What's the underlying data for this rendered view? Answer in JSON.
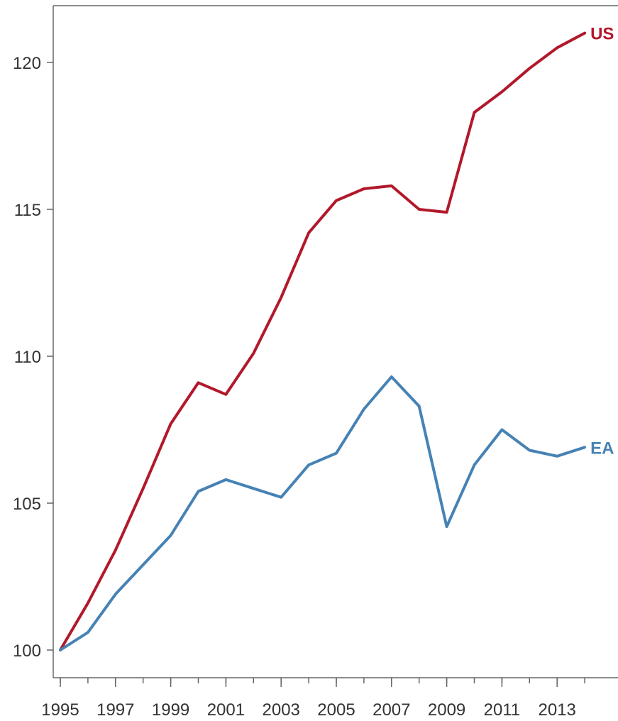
{
  "chart_data": {
    "type": "line",
    "title": "",
    "xlabel": "",
    "ylabel": "",
    "x": [
      1995,
      1996,
      1997,
      1998,
      1999,
      2000,
      2001,
      2002,
      2003,
      2004,
      2005,
      2006,
      2007,
      2008,
      2009,
      2010,
      2011,
      2012,
      2013,
      2014
    ],
    "xlim": [
      1995,
      2015
    ],
    "ylim": [
      99,
      122
    ],
    "x_ticks": [
      "1995",
      "1997",
      "1999",
      "2001",
      "2003",
      "2005",
      "2007",
      "2009",
      "2011",
      "2013"
    ],
    "y_ticks": [
      "100",
      "105",
      "110",
      "115",
      "120"
    ],
    "grid": false,
    "legend": "labels at line ends (right)",
    "series": [
      {
        "name": "US",
        "color": "#b2182b",
        "values": [
          100.0,
          101.6,
          103.4,
          105.5,
          107.7,
          109.1,
          108.7,
          110.1,
          112.0,
          114.2,
          115.3,
          115.7,
          115.8,
          115.0,
          114.9,
          118.3,
          119.0,
          119.8,
          120.5,
          121.0
        ]
      },
      {
        "name": "EA",
        "color": "#4682b4",
        "values": [
          100.0,
          100.6,
          101.9,
          102.9,
          103.9,
          105.4,
          105.8,
          105.5,
          105.2,
          106.3,
          106.7,
          108.2,
          109.3,
          108.3,
          104.2,
          106.3,
          107.5,
          106.8,
          106.6,
          106.9
        ]
      }
    ]
  }
}
